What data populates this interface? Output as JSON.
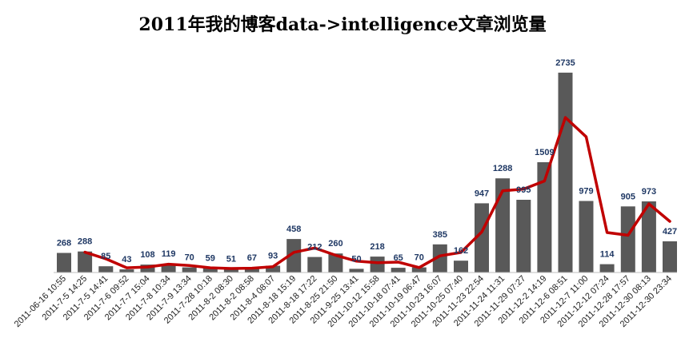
{
  "chart_data": {
    "type": "bar",
    "title": "2011年我的博客data->intelligence文章浏览量",
    "xlabel": "",
    "ylabel": "",
    "ylim": [
      0,
      2800
    ],
    "grid": false,
    "legend": "none",
    "categories": [
      "2011-06-16 10:55",
      "2011-7-5 14:25",
      "2011-7-5 14:41",
      "2011-7-6 09:52",
      "2011-7-7 15:04",
      "2011-7-8 10:34",
      "2011-7-9 13:34",
      "2011-7-28 10:18",
      "2011-8-2 08:30",
      "2011-8-2 08:58",
      "2011-8-4 08:07",
      "2011-8-18 15:19",
      "2011-8-18 17:22",
      "2011-8-25 21:50",
      "2011-9-25 13:41",
      "2011-10-12 15:58",
      "2011-10-18 07:41",
      "2011-10-19 06:47",
      "2011-10-23 16:07",
      "2011-10-25 07:40",
      "2011-11-23 22:54",
      "2011-11-24 11:31",
      "2011-11-29 07:27",
      "2011-12-2 14:19",
      "2011-12-6 08:51",
      "2011-12-7 11:00",
      "2011-12-12 07:24",
      "2011-12-28 17:57",
      "2011-12-30 08:13",
      "2011-12-30 23:34"
    ],
    "series": [
      {
        "type": "bar",
        "values": [
          268,
          288,
          85,
          43,
          108,
          119,
          70,
          59,
          51,
          67,
          93,
          458,
          212,
          260,
          50,
          218,
          65,
          70,
          385,
          162,
          947,
          1288,
          995,
          1509,
          2735,
          979,
          114,
          905,
          973,
          427
        ]
      },
      {
        "type": "line",
        "values": [
          null,
          278,
          187,
          65,
          76,
          114,
          95,
          65,
          55,
          59,
          80,
          276,
          335,
          236,
          155,
          134,
          142,
          68,
          228,
          274,
          555,
          1118,
          1142,
          1252,
          2122,
          1857,
          547,
          510,
          939,
          700
        ]
      }
    ],
    "colors": {
      "bar": "#595959",
      "line": "#c00000",
      "label": "#1f3864",
      "title": "#000000",
      "tick": "#222222"
    }
  }
}
